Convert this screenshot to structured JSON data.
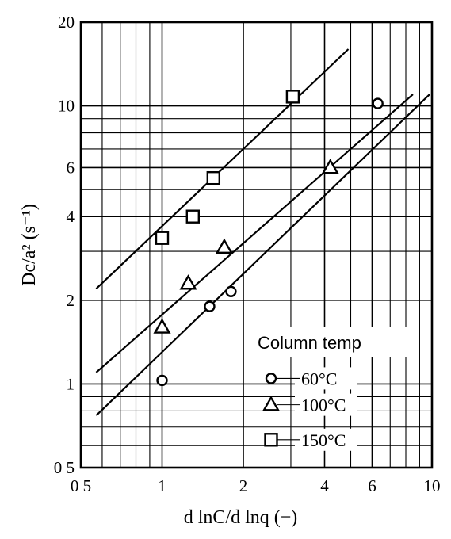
{
  "chart_data": {
    "type": "scatter",
    "title": "",
    "xlabel": "d lnC/d lnq (−)",
    "ylabel": "Dc/a² (s⁻¹)",
    "xscale": "log",
    "yscale": "log",
    "xlim": [
      0.5,
      10
    ],
    "ylim": [
      0.5,
      20
    ],
    "grid": true,
    "xticks": [
      {
        "value": 0.5,
        "label": "0 5"
      },
      {
        "value": 1,
        "label": "1"
      },
      {
        "value": 2,
        "label": "2"
      },
      {
        "value": 4,
        "label": "4"
      },
      {
        "value": 6,
        "label": "6"
      },
      {
        "value": 10,
        "label": "10"
      }
    ],
    "yticks": [
      {
        "value": 0.5,
        "label": "0 5"
      },
      {
        "value": 1,
        "label": "1"
      },
      {
        "value": 2,
        "label": "2"
      },
      {
        "value": 4,
        "label": "4"
      },
      {
        "value": 6,
        "label": "6"
      },
      {
        "value": 10,
        "label": "10"
      },
      {
        "value": 20,
        "label": "20"
      }
    ],
    "legend": {
      "title": "Column temp",
      "position": "bottom-right",
      "entries": [
        {
          "label": "60°C",
          "marker": "circle"
        },
        {
          "label": "100°C",
          "marker": "triangle"
        },
        {
          "label": "150°C",
          "marker": "square"
        }
      ]
    },
    "series": [
      {
        "name": "60°C",
        "marker": "circle",
        "x": [
          1.0,
          1.5,
          1.8,
          6.3
        ],
        "y": [
          1.03,
          1.9,
          2.15,
          10.2
        ],
        "fit": {
          "x": [
            0.57,
            9.8
          ],
          "y": [
            0.77,
            11.0
          ]
        }
      },
      {
        "name": "100°C",
        "marker": "triangle",
        "x": [
          1.0,
          1.25,
          1.7,
          4.2
        ],
        "y": [
          1.6,
          2.3,
          3.1,
          6.0
        ],
        "fit": {
          "x": [
            0.57,
            8.5
          ],
          "y": [
            1.1,
            11.0
          ]
        }
      },
      {
        "name": "150°C",
        "marker": "square",
        "x": [
          1.0,
          1.3,
          1.55,
          3.05
        ],
        "y": [
          3.35,
          4.0,
          5.5,
          10.8
        ],
        "fit": {
          "x": [
            0.57,
            4.9
          ],
          "y": [
            2.2,
            16.0
          ]
        }
      }
    ]
  }
}
